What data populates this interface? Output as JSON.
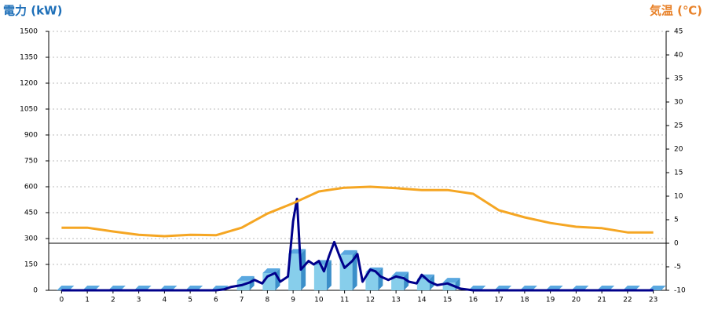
{
  "chart_data": {
    "type": "combo",
    "y_title": "電力 (kW)",
    "y2_title": "気温 (℃)",
    "xlim": [
      -0.5,
      23.5
    ],
    "xticks": [
      0,
      1,
      2,
      3,
      4,
      5,
      6,
      7,
      8,
      9,
      10,
      11,
      12,
      13,
      14,
      15,
      16,
      17,
      18,
      19,
      20,
      21,
      22,
      23
    ],
    "ylim": [
      0,
      1500
    ],
    "yticks": [
      0,
      150,
      300,
      450,
      600,
      750,
      900,
      1050,
      1200,
      1350,
      1500
    ],
    "y2lim": [
      -10,
      45
    ],
    "y2ticks": [
      -10,
      -5,
      0,
      5,
      10,
      15,
      20,
      25,
      30,
      35,
      40,
      45
    ],
    "grid": true,
    "reference_line": {
      "axis": "y2",
      "value": 0,
      "color": "#000000"
    },
    "series": [
      {
        "type": "bar",
        "color": "#87ceeb",
        "x": [
          0,
          1,
          2,
          3,
          4,
          5,
          6,
          7,
          8,
          9,
          10,
          11,
          12,
          13,
          14,
          15,
          16,
          17,
          18,
          19,
          20,
          21,
          22,
          23
        ],
        "values": [
          0,
          0,
          0,
          0,
          0,
          0,
          0,
          55,
          100,
          212,
          148,
          205,
          105,
          80,
          65,
          45,
          0,
          0,
          0,
          0,
          0,
          0,
          0,
          0
        ]
      },
      {
        "type": "line",
        "color": "#00008b",
        "x": [
          0,
          1,
          2,
          3,
          4,
          5,
          6,
          6.3,
          6.6,
          7,
          7.3,
          7.5,
          7.8,
          8,
          8.3,
          8.5,
          8.8,
          9,
          9.15,
          9.3,
          9.6,
          9.8,
          10,
          10.2,
          10.4,
          10.6,
          10.8,
          11,
          11.3,
          11.5,
          11.7,
          12,
          12.2,
          12.4,
          12.7,
          13,
          13.3,
          13.5,
          13.8,
          14,
          14.3,
          14.6,
          15,
          15.5,
          16,
          17,
          18,
          19,
          20,
          21,
          22,
          23
        ],
        "values": [
          0,
          0,
          0,
          0,
          0,
          0,
          0,
          5,
          20,
          30,
          45,
          60,
          40,
          80,
          100,
          50,
          80,
          400,
          530,
          120,
          170,
          150,
          170,
          110,
          200,
          280,
          200,
          130,
          170,
          210,
          50,
          120,
          110,
          80,
          60,
          80,
          70,
          50,
          40,
          90,
          50,
          30,
          40,
          10,
          0,
          0,
          0,
          0,
          0,
          0,
          0,
          0
        ]
      },
      {
        "type": "line",
        "axis": "y2",
        "color": "#f5a623",
        "x": [
          0,
          1,
          2,
          3,
          4,
          5,
          6,
          7,
          8,
          9,
          10,
          11,
          12,
          13,
          14,
          15,
          16,
          17,
          18,
          19,
          20,
          21,
          22,
          23
        ],
        "values": [
          3.3,
          3.3,
          2.5,
          1.8,
          1.5,
          1.8,
          1.7,
          3.3,
          6.3,
          8.5,
          11,
          11.8,
          12,
          11.7,
          11.3,
          11.3,
          10.5,
          7,
          5.5,
          4.3,
          3.5,
          3.2,
          2.3,
          2.3
        ]
      }
    ]
  }
}
